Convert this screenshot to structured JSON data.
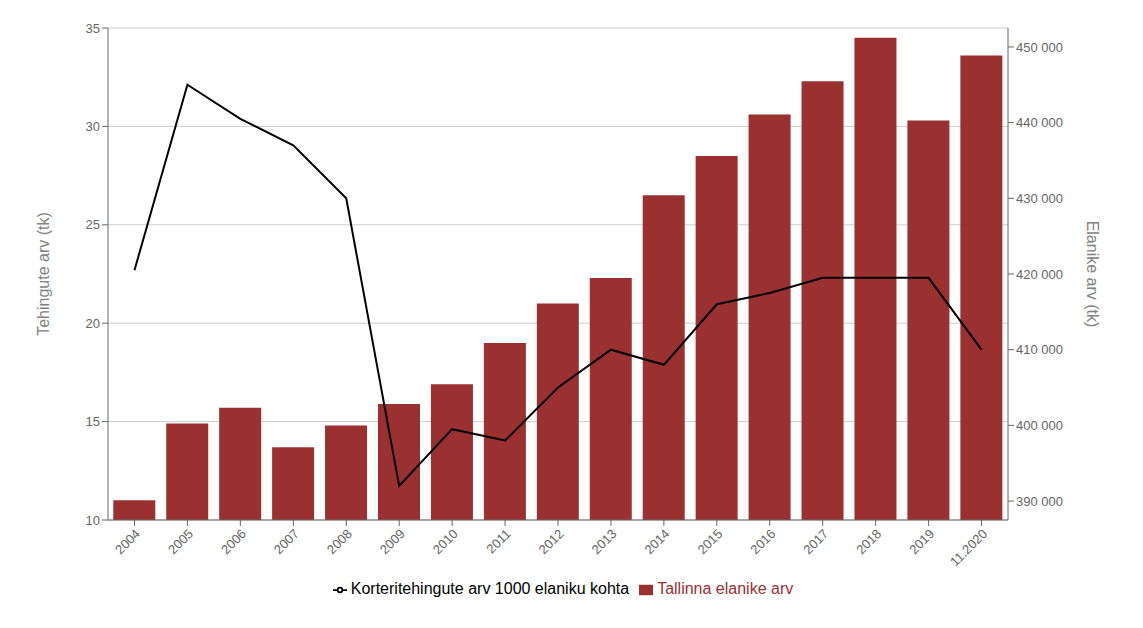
{
  "chart_data": {
    "type": "bar",
    "categories": [
      "2004",
      "2005",
      "2006",
      "2007",
      "2008",
      "2009",
      "2010",
      "2011",
      "2012",
      "2013",
      "2014",
      "2015",
      "2016",
      "2017",
      "2018",
      "2019",
      "11.2020"
    ],
    "series": [
      {
        "name": "Tallinna elanike arv",
        "type": "bar",
        "color": "#9B3030",
        "values": [
          11.0,
          14.9,
          15.7,
          13.7,
          14.8,
          15.9,
          16.9,
          19.0,
          21.0,
          22.3,
          26.5,
          28.5,
          30.6,
          32.3,
          34.5,
          30.3,
          33.6
        ]
      },
      {
        "name": "Korteritehingute arv 1000 elaniku kohta",
        "type": "line",
        "color": "#000000",
        "axis": "y2",
        "values": [
          420500,
          445000,
          440500,
          437000,
          430000,
          392000,
          399500,
          398000,
          405000,
          410000,
          408000,
          416000,
          417500,
          419500,
          419500,
          419500,
          410000
        ]
      }
    ],
    "ylabel": "Tehingute arv (tk)",
    "y2label": "Elanike arv (tk)",
    "ylim": [
      10,
      35
    ],
    "yticks": [
      10,
      15,
      20,
      25,
      30,
      35
    ],
    "y2lim": [
      387500,
      452500
    ],
    "y2ticks": [
      {
        "value": 390000,
        "label": "390 000"
      },
      {
        "value": 400000,
        "label": "400 000"
      },
      {
        "value": 410000,
        "label": "410 000"
      },
      {
        "value": 420000,
        "label": "420 000"
      },
      {
        "value": 430000,
        "label": "430 000"
      },
      {
        "value": 440000,
        "label": "440 000"
      },
      {
        "value": 450000,
        "label": "450 000"
      }
    ],
    "grid": true,
    "legend": "bottom"
  }
}
